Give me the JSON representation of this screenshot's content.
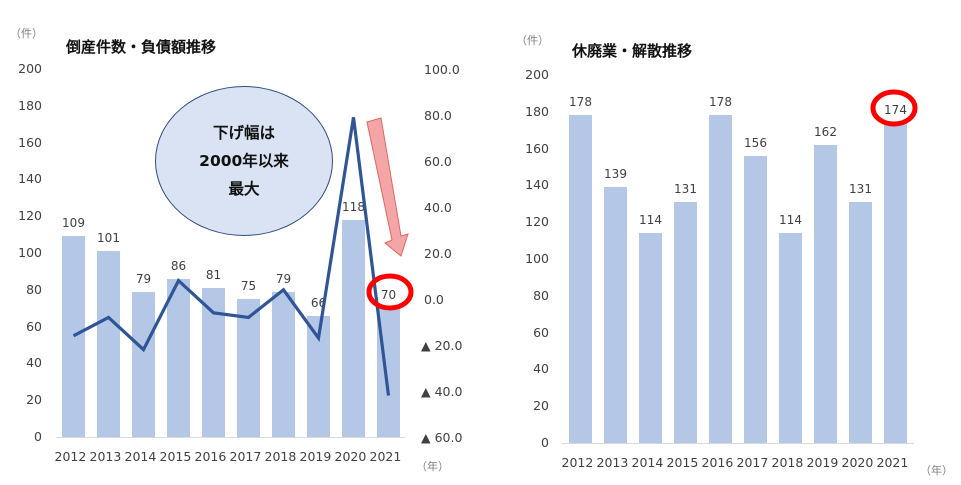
{
  "left": {
    "unit": "（件）",
    "title": "倒産件数・負債額推移",
    "year_unit": "（年）",
    "y_ticks": [
      "200",
      "180",
      "160",
      "140",
      "120",
      "100",
      "80",
      "60",
      "40",
      "20",
      "0"
    ],
    "y2_ticks": [
      "100.0",
      "80.0",
      "60.0",
      "40.0",
      "20.0",
      "0.0",
      "▲ 20.0",
      "▲ 40.0",
      "▲ 60.0"
    ],
    "bubble": [
      "下げ幅は",
      "2000年以来",
      "最大"
    ]
  },
  "right": {
    "unit": "（件）",
    "title": "休廃業・解散推移",
    "year_unit": "（年）",
    "y_ticks": [
      "200",
      "180",
      "160",
      "140",
      "120",
      "100",
      "80",
      "60",
      "40",
      "20",
      "0"
    ]
  },
  "colors": {
    "bar": "#b4c7e7",
    "line": "#2f5597",
    "highlight": "#ff0000",
    "arrow": "#f4a6a6"
  },
  "chart_data": [
    {
      "type": "bar+line",
      "title": "倒産件数・負債額推移",
      "categories": [
        "2012",
        "2013",
        "2014",
        "2015",
        "2016",
        "2017",
        "2018",
        "2019",
        "2020",
        "2021"
      ],
      "series": [
        {
          "name": "倒産件数",
          "type": "bar",
          "axis": "left",
          "values": [
            109,
            101,
            79,
            86,
            81,
            75,
            79,
            66,
            118,
            70
          ]
        },
        {
          "name": "負債額",
          "type": "line",
          "axis": "right",
          "values": [
            -16,
            -8,
            -22,
            8,
            -6,
            -8,
            4,
            -17,
            79,
            -42
          ]
        }
      ],
      "ylabel": "（件）",
      "xlabel": "（年）",
      "ylim": [
        0,
        200
      ],
      "y2lim": [
        -60,
        100
      ],
      "annotations": [
        "下げ幅は2000年以来最大",
        "2021: 70 circled",
        "down arrow 2020→2021"
      ],
      "grid": false
    },
    {
      "type": "bar",
      "title": "休廃業・解散推移",
      "categories": [
        "2012",
        "2013",
        "2014",
        "2015",
        "2016",
        "2017",
        "2018",
        "2019",
        "2020",
        "2021"
      ],
      "values": [
        178,
        139,
        114,
        131,
        178,
        156,
        114,
        162,
        131,
        174
      ],
      "ylabel": "（件）",
      "xlabel": "（年）",
      "ylim": [
        0,
        200
      ],
      "annotations": [
        "2021: 174 circled"
      ],
      "grid": false
    }
  ]
}
